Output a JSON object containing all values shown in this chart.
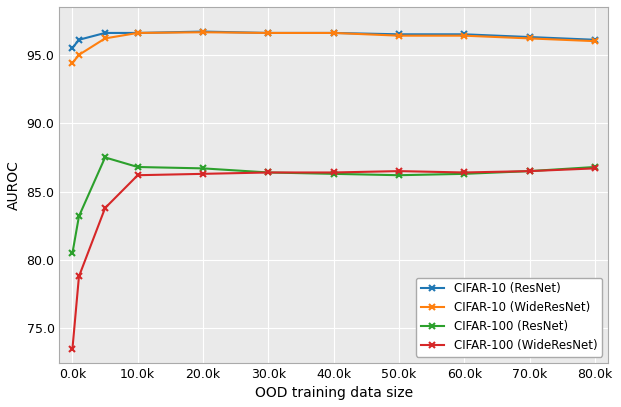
{
  "x_values": [
    0,
    1000,
    5000,
    10000,
    20000,
    30000,
    40000,
    50000,
    60000,
    70000,
    80000
  ],
  "cifar10_resnet": [
    95.5,
    96.1,
    96.6,
    96.6,
    96.7,
    96.6,
    96.6,
    96.5,
    96.5,
    96.3,
    96.1
  ],
  "cifar10_wideresnet": [
    94.4,
    95.0,
    96.2,
    96.6,
    96.65,
    96.6,
    96.6,
    96.4,
    96.4,
    96.2,
    96.0
  ],
  "cifar100_resnet": [
    80.5,
    83.2,
    87.5,
    86.8,
    86.7,
    86.4,
    86.3,
    86.2,
    86.3,
    86.5,
    86.8
  ],
  "cifar100_wideresnet": [
    73.5,
    78.8,
    83.8,
    86.2,
    86.3,
    86.4,
    86.4,
    86.5,
    86.4,
    86.5,
    86.7
  ],
  "colors": {
    "cifar10_resnet": "#1f77b4",
    "cifar10_wideresnet": "#ff7f0e",
    "cifar100_resnet": "#2ca02c",
    "cifar100_wideresnet": "#d62728"
  },
  "labels": {
    "cifar10_resnet": "CIFAR-10 (ResNet)",
    "cifar10_wideresnet": "CIFAR-10 (WideResNet)",
    "cifar100_resnet": "CIFAR-100 (ResNet)",
    "cifar100_wideresnet": "CIFAR-100 (WideResNet)"
  },
  "xlabel": "OOD training data size",
  "ylabel": "AUROC",
  "ylim": [
    72.5,
    98.5
  ],
  "xlim": [
    -2000,
    82000
  ],
  "yticks": [
    75.0,
    80.0,
    85.0,
    90.0,
    95.0
  ],
  "xticks": [
    0,
    10000,
    20000,
    30000,
    40000,
    50000,
    60000,
    70000,
    80000
  ],
  "bg_color": "#eaeaea"
}
